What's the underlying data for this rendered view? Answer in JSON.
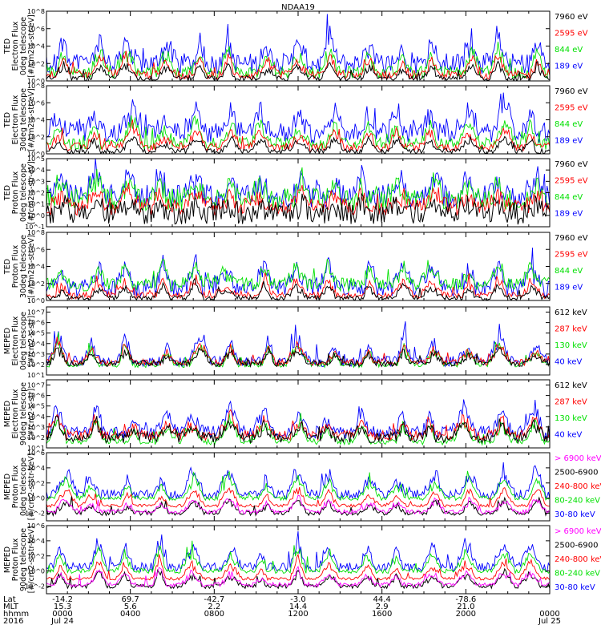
{
  "title": "NDAA19",
  "colors": {
    "black": "#000000",
    "red": "#ff0000",
    "green": "#00e000",
    "blue": "#0000ff",
    "magenta": "#ff00ff"
  },
  "chart_data": [
    {
      "type": "line",
      "instrument": "TED",
      "ylabel": [
        "TED",
        "Electron Flux",
        "0deg telescope",
        "[#/cm2-s-str-eV]"
      ],
      "yticks": [
        "10^0",
        "10^2",
        "10^4",
        "10^6",
        "10^8"
      ],
      "ylim_exp": [
        0,
        8
      ],
      "series": [
        {
          "name": "7960 eV",
          "color": "black"
        },
        {
          "name": "2595 eV",
          "color": "red"
        },
        {
          "name": "844 eV",
          "color": "green"
        },
        {
          "name": "189 eV",
          "color": "blue"
        }
      ],
      "levels": {
        "blue": [
          2.0,
          1.2
        ],
        "green": [
          1.0,
          0.7
        ],
        "red": [
          0.7,
          0.5
        ],
        "black": [
          0.3,
          0.3
        ]
      }
    },
    {
      "type": "line",
      "instrument": "TED",
      "ylabel": [
        "TED",
        "Electron Flux",
        "30deg telescope",
        "[#/cm2-s-str-eV]"
      ],
      "yticks": [
        "10^0",
        "10^2",
        "10^4",
        "10^6",
        "10^8"
      ],
      "ylim_exp": [
        0,
        8
      ],
      "series": [
        {
          "name": "7960 eV",
          "color": "black"
        },
        {
          "name": "2595 eV",
          "color": "red"
        },
        {
          "name": "844 eV",
          "color": "green"
        },
        {
          "name": "189 eV",
          "color": "blue"
        }
      ],
      "levels": {
        "blue": [
          2.5,
          1.2
        ],
        "green": [
          1.2,
          0.7
        ],
        "red": [
          0.8,
          0.5
        ],
        "black": [
          0.3,
          0.3
        ]
      }
    },
    {
      "type": "line",
      "instrument": "TED",
      "ylabel": [
        "TED",
        "Proton Flux",
        "0deg telescope",
        "[#/cm2-s-str-eV]"
      ],
      "yticks": [
        "10^-1",
        "10^0",
        "10^1",
        "10^2",
        "10^3",
        "10^4",
        "10^5"
      ],
      "ylim_exp": [
        -1,
        5
      ],
      "series": [
        {
          "name": "7960 eV",
          "color": "black"
        },
        {
          "name": "2595 eV",
          "color": "red"
        },
        {
          "name": "844 eV",
          "color": "green"
        },
        {
          "name": "189 eV",
          "color": "blue"
        }
      ],
      "levels": {
        "blue": [
          1.7,
          1.0
        ],
        "green": [
          1.4,
          1.0
        ],
        "red": [
          0.8,
          0.8
        ],
        "black": [
          0.2,
          1.0
        ]
      }
    },
    {
      "type": "line",
      "instrument": "TED",
      "ylabel": [
        "TED",
        "Proton Flux",
        "30deg telescope",
        "[#/cm2-s-str-eV]"
      ],
      "yticks": [
        "10^0",
        "10^2",
        "10^4",
        "10^6",
        "10^8"
      ],
      "ylim_exp": [
        0,
        8
      ],
      "series": [
        {
          "name": "7960 eV",
          "color": "black"
        },
        {
          "name": "2595 eV",
          "color": "red"
        },
        {
          "name": "844 eV",
          "color": "green"
        },
        {
          "name": "189 eV",
          "color": "blue"
        }
      ],
      "levels": {
        "blue": [
          1.5,
          1.0
        ],
        "green": [
          1.9,
          0.8
        ],
        "red": [
          0.6,
          0.4
        ],
        "black": [
          0.3,
          0.3
        ]
      }
    },
    {
      "type": "line",
      "instrument": "MEPED",
      "ylabel": [
        "MEPED",
        "Electron Flux",
        "0deg telescope",
        "[#/cm2-s-str]"
      ],
      "yticks": [
        "10^1",
        "10^2",
        "10^3",
        "10^4",
        "10^5",
        "10^6",
        "10^7"
      ],
      "ylim_exp": [
        1,
        7.5
      ],
      "series": [
        {
          "name": "612 keV",
          "color": "black"
        },
        {
          "name": "287 keV",
          "color": "red"
        },
        {
          "name": "130 keV",
          "color": "green"
        },
        {
          "name": "40 keV",
          "color": "blue"
        }
      ],
      "levels": {
        "blue": [
          2.3,
          0.5
        ],
        "green": [
          2.0,
          0.3
        ],
        "red": [
          2.2,
          0.3
        ],
        "black": [
          2.1,
          0.3
        ]
      }
    },
    {
      "type": "line",
      "instrument": "MEPED",
      "ylabel": [
        "MEPED",
        "Electron Flux",
        "90deg telescope",
        "[#/cm2-s-str]"
      ],
      "yticks": [
        "10^1",
        "10^2",
        "10^3",
        "10^4",
        "10^5",
        "10^6",
        "10^7"
      ],
      "ylim_exp": [
        1,
        7.5
      ],
      "series": [
        {
          "name": "612 keV",
          "color": "black"
        },
        {
          "name": "287 keV",
          "color": "red"
        },
        {
          "name": "130 keV",
          "color": "green"
        },
        {
          "name": "40 keV",
          "color": "blue"
        }
      ],
      "levels": {
        "blue": [
          2.5,
          0.6
        ],
        "green": [
          1.6,
          0.3
        ],
        "red": [
          2.2,
          0.5
        ],
        "black": [
          2.0,
          0.5
        ]
      }
    },
    {
      "type": "line",
      "instrument": "MEPED",
      "ylabel": [
        "MEPED",
        "Proton Flux",
        "0deg telescope",
        "[#/cm2-s-str-keV]"
      ],
      "yticks": [
        "10^-2",
        "10^0",
        "10^2",
        "10^4",
        "10^6"
      ],
      "ylim_exp": [
        -3,
        6
      ],
      "series": [
        {
          "name": "> 6900 keV",
          "color": "magenta"
        },
        {
          "name": "2500-6900",
          "color": "black"
        },
        {
          "name": "240-800 keV",
          "color": "red"
        },
        {
          "name": "80-240 keV",
          "color": "green"
        },
        {
          "name": "30-80 keV",
          "color": "blue"
        }
      ],
      "levels": {
        "blue": [
          0.5,
          0.6
        ],
        "green": [
          0.0,
          0.3
        ],
        "red": [
          -1.0,
          0.2
        ],
        "black": [
          -2.0,
          0.3
        ],
        "magenta": [
          -1.8,
          0.3
        ]
      }
    },
    {
      "type": "line",
      "instrument": "MEPED",
      "ylabel": [
        "MEPED",
        "Proton Flux",
        "90deg telescope",
        "[#/cm2-s-str-keV]"
      ],
      "yticks": [
        "10^-2",
        "10^0",
        "10^2",
        "10^4",
        "10^6"
      ],
      "ylim_exp": [
        -3,
        6
      ],
      "series": [
        {
          "name": "> 6900 keV",
          "color": "magenta"
        },
        {
          "name": "2500-6900",
          "color": "black"
        },
        {
          "name": "240-800 keV",
          "color": "red"
        },
        {
          "name": "80-240 keV",
          "color": "green"
        },
        {
          "name": "30-80 keV",
          "color": "blue"
        }
      ],
      "levels": {
        "blue": [
          0.5,
          0.6
        ],
        "green": [
          0.0,
          0.3
        ],
        "red": [
          -1.0,
          0.2
        ],
        "black": [
          -2.0,
          0.3
        ],
        "magenta": [
          -1.8,
          0.3
        ]
      }
    }
  ],
  "footer": {
    "row_labels": [
      "Lat",
      "MLT",
      "hhmm",
      "2016"
    ],
    "columns": [
      {
        "lat": "-14.2",
        "mlt": "15.3",
        "hhmm": "0000",
        "date": "Jul 24"
      },
      {
        "lat": "69.7",
        "mlt": "5.6",
        "hhmm": "0400",
        "date": ""
      },
      {
        "lat": "-42.7",
        "mlt": "2.2",
        "hhmm": "0800",
        "date": ""
      },
      {
        "lat": "-3.0",
        "mlt": "14.4",
        "hhmm": "1200",
        "date": ""
      },
      {
        "lat": "44.4",
        "mlt": "2.9",
        "hhmm": "1600",
        "date": ""
      },
      {
        "lat": "-78.6",
        "mlt": "21.0",
        "hhmm": "2000",
        "date": ""
      },
      {
        "lat": "",
        "mlt": "",
        "hhmm": "0000",
        "date": "Jul 25"
      }
    ]
  }
}
